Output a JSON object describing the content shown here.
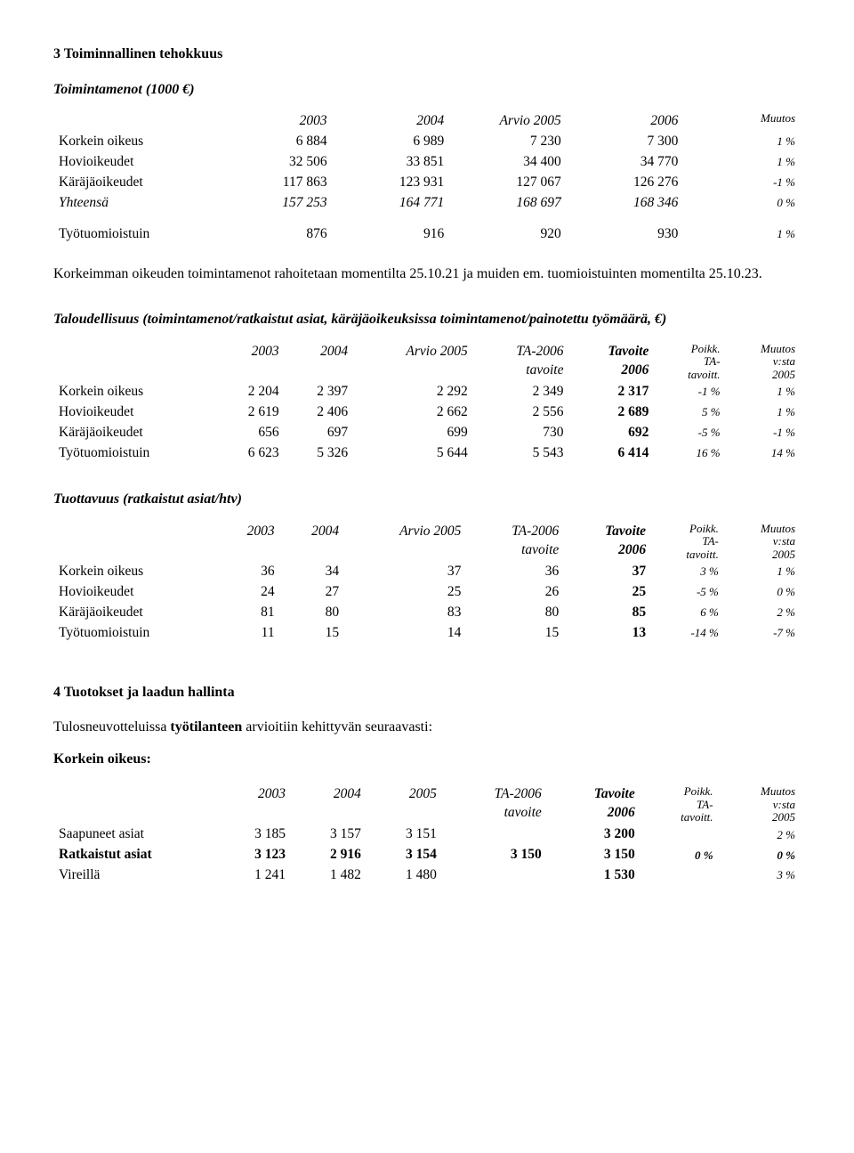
{
  "section3": {
    "heading": "3  Toiminnallinen tehokkuus",
    "sub1": {
      "title": "Toimintamenot (1000 €)",
      "cols": [
        "2003",
        "2004",
        "Arvio 2005",
        "2006",
        "Muutos"
      ],
      "rows": [
        {
          "label": "Korkein oikeus",
          "c": [
            "6 884",
            "6 989",
            "7 230",
            "7 300",
            "1 %"
          ]
        },
        {
          "label": "Hovioikeudet",
          "c": [
            "32 506",
            "33 851",
            "34 400",
            "34 770",
            "1 %"
          ]
        },
        {
          "label": "Käräjäoikeudet",
          "c": [
            "117 863",
            "123 931",
            "127 067",
            "126 276",
            "-1 %"
          ]
        }
      ],
      "total": {
        "label": "Yhteensä",
        "c": [
          "157 253",
          "164 771",
          "168 697",
          "168 346",
          "0 %"
        ]
      },
      "extra": {
        "label": "Työtuomioistuin",
        "c": [
          "876",
          "916",
          "920",
          "930",
          "1 %"
        ]
      }
    },
    "para1": "Korkeimman oikeuden toimintamenot rahoitetaan momentilta 25.10.21 ja muiden em. tuomioistuinten momentilta 25.10.23.",
    "sub2": {
      "title": "Taloudellisuus (toimintamenot/ratkaistut asiat, käräjäoikeuksissa toimintamenot/painotettu työmäärä, €)",
      "cols": [
        "2003",
        "2004",
        "Arvio 2005",
        "TA-2006\ntavoite",
        "Tavoite\n2006",
        "Poikk.\nTA-\ntavoitt.",
        "Muutos\nv:sta\n2005"
      ],
      "rows": [
        {
          "label": "Korkein oikeus",
          "c": [
            "2 204",
            "2 397",
            "2 292",
            "2 349",
            "2 317",
            "-1 %",
            "1 %"
          ]
        },
        {
          "label": "Hovioikeudet",
          "c": [
            "2 619",
            "2 406",
            "2 662",
            "2 556",
            "2 689",
            "5 %",
            "1 %"
          ]
        },
        {
          "label": "Käräjäoikeudet",
          "c": [
            "656",
            "697",
            "699",
            "730",
            "692",
            "-5 %",
            "-1 %"
          ]
        },
        {
          "label": "Työtuomioistuin",
          "c": [
            "6 623",
            "5 326",
            "5 644",
            "5 543",
            "6 414",
            "16 %",
            "14 %"
          ]
        }
      ]
    },
    "sub3": {
      "title": "Tuottavuus (ratkaistut asiat/htv)",
      "cols": [
        "2003",
        "2004",
        "Arvio 2005",
        "TA-2006\ntavoite",
        "Tavoite\n2006",
        "Poikk.\nTA-\ntavoitt.",
        "Muutos\nv:sta\n2005"
      ],
      "rows": [
        {
          "label": "Korkein oikeus",
          "c": [
            "36",
            "34",
            "37",
            "36",
            "37",
            "3 %",
            "1 %"
          ]
        },
        {
          "label": "Hovioikeudet",
          "c": [
            "24",
            "27",
            "25",
            "26",
            "25",
            "-5 %",
            "0 %"
          ]
        },
        {
          "label": "Käräjäoikeudet",
          "c": [
            "81",
            "80",
            "83",
            "80",
            "85",
            "6 %",
            "2 %"
          ]
        },
        {
          "label": "Työtuomioistuin",
          "c": [
            "11",
            "15",
            "14",
            "15",
            "13",
            "-14 %",
            "-7 %"
          ]
        }
      ]
    }
  },
  "section4": {
    "heading": "4  Tuotokset ja laadun hallinta",
    "para": "Tulosneuvotteluissa työtilanteen arvioitiin kehittyvän seuraavasti:",
    "sub": {
      "title": "Korkein oikeus:",
      "cols": [
        "2003",
        "2004",
        "2005",
        "TA-2006\ntavoite",
        "Tavoite\n2006",
        "Poikk.\nTA-\ntavoitt.",
        "Muutos\nv:sta\n2005"
      ],
      "rows": [
        {
          "label": "Saapuneet asiat",
          "c": [
            "3 185",
            "3 157",
            "3 151",
            "",
            "3 200",
            "",
            "2 %"
          ],
          "bold": false
        },
        {
          "label": "Ratkaistut asiat",
          "c": [
            "3 123",
            "2 916",
            "3 154",
            "3 150",
            "3 150",
            "0 %",
            "0 %"
          ],
          "bold": true
        },
        {
          "label": "Vireillä",
          "c": [
            "1 241",
            "1 482",
            "1 480",
            "",
            "1 530",
            "",
            "3 %"
          ],
          "bold": false
        }
      ]
    }
  }
}
